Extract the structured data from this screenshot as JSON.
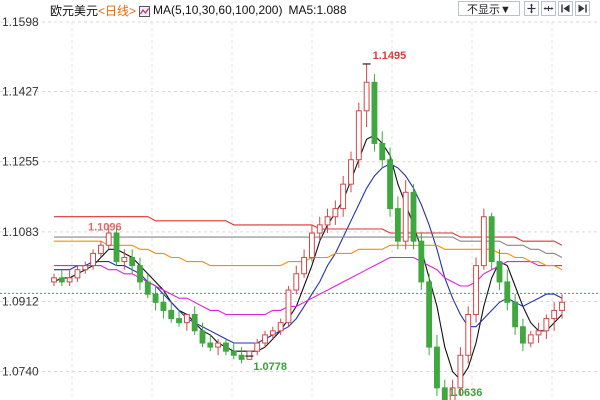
{
  "header": {
    "symbol": "欧元美元",
    "interval": "<日线>",
    "ma_label": "MA(5,10,30,60,100,200)",
    "ma5_readout": "MA5:1.088"
  },
  "toolbar": {
    "display_select": "不显示▼",
    "icons": [
      "zoom-in-icon",
      "zoom-out-icon",
      "step-back-icon",
      "step-forward-icon"
    ]
  },
  "chart_data": {
    "type": "candlestick",
    "ylim": [
      1.068,
      1.1598
    ],
    "y_ticks": [
      "1.1598",
      "1.1427",
      "1.1255",
      "1.1083",
      "1.0912",
      "1.0740"
    ],
    "reference_line": 1.0932,
    "annotations": [
      {
        "text": "1.1096",
        "value": 1.1096,
        "color": "#e06a6a"
      },
      {
        "text": "1.1495",
        "value": 1.1495,
        "color": "#e03a3a"
      },
      {
        "text": "1.0778",
        "value": 1.0778,
        "color": "#3aa03a"
      },
      {
        "text": "1.0636",
        "value": 1.0636,
        "color": "#3aa03a"
      }
    ],
    "candles": [
      [
        1.096,
        1.098,
        1.095,
        1.097
      ],
      [
        1.097,
        1.099,
        1.095,
        1.096
      ],
      [
        1.096,
        1.099,
        1.095,
        1.097
      ],
      [
        1.097,
        1.1,
        1.096,
        1.099
      ],
      [
        1.099,
        1.101,
        1.098,
        1.1
      ],
      [
        1.1,
        1.104,
        1.099,
        1.103
      ],
      [
        1.103,
        1.106,
        1.102,
        1.105
      ],
      [
        1.105,
        1.11,
        1.104,
        1.108
      ],
      [
        1.108,
        1.11,
        1.1,
        1.101
      ],
      [
        1.101,
        1.104,
        1.099,
        1.102
      ],
      [
        1.102,
        1.104,
        1.098,
        1.1
      ],
      [
        1.1,
        1.102,
        1.094,
        1.096
      ],
      [
        1.096,
        1.098,
        1.092,
        1.093
      ],
      [
        1.093,
        1.095,
        1.089,
        1.091
      ],
      [
        1.091,
        1.093,
        1.087,
        1.089
      ],
      [
        1.089,
        1.091,
        1.086,
        1.087
      ],
      [
        1.087,
        1.089,
        1.085,
        1.086
      ],
      [
        1.086,
        1.088,
        1.084,
        1.088
      ],
      [
        1.088,
        1.09,
        1.083,
        1.084
      ],
      [
        1.084,
        1.086,
        1.08,
        1.081
      ],
      [
        1.081,
        1.083,
        1.079,
        1.08
      ],
      [
        1.08,
        1.082,
        1.078,
        1.081
      ],
      [
        1.081,
        1.082,
        1.078,
        1.079
      ],
      [
        1.079,
        1.081,
        1.077,
        1.078
      ],
      [
        1.078,
        1.08,
        1.076,
        1.077
      ],
      [
        1.077,
        1.079,
        1.0778,
        1.079
      ],
      [
        1.079,
        1.082,
        1.078,
        1.081
      ],
      [
        1.081,
        1.084,
        1.08,
        1.083
      ],
      [
        1.083,
        1.085,
        1.082,
        1.084
      ],
      [
        1.084,
        1.087,
        1.083,
        1.086
      ],
      [
        1.086,
        1.095,
        1.085,
        1.094
      ],
      [
        1.094,
        1.1,
        1.093,
        1.098
      ],
      [
        1.098,
        1.104,
        1.097,
        1.102
      ],
      [
        1.102,
        1.11,
        1.101,
        1.108
      ],
      [
        1.108,
        1.112,
        1.106,
        1.11
      ],
      [
        1.11,
        1.114,
        1.108,
        1.112
      ],
      [
        1.112,
        1.116,
        1.11,
        1.114
      ],
      [
        1.114,
        1.122,
        1.112,
        1.12
      ],
      [
        1.12,
        1.128,
        1.118,
        1.126
      ],
      [
        1.126,
        1.14,
        1.124,
        1.138
      ],
      [
        1.138,
        1.1495,
        1.134,
        1.145
      ],
      [
        1.145,
        1.147,
        1.128,
        1.13
      ],
      [
        1.13,
        1.133,
        1.124,
        1.126
      ],
      [
        1.126,
        1.129,
        1.112,
        1.114
      ],
      [
        1.114,
        1.117,
        1.104,
        1.106
      ],
      [
        1.106,
        1.121,
        1.104,
        1.118
      ],
      [
        1.118,
        1.12,
        1.104,
        1.106
      ],
      [
        1.106,
        1.108,
        1.094,
        1.096
      ],
      [
        1.096,
        1.098,
        1.078,
        1.08
      ],
      [
        1.08,
        1.083,
        1.068,
        1.07
      ],
      [
        1.07,
        1.072,
        1.0636,
        1.066
      ],
      [
        1.066,
        1.072,
        1.064,
        1.07
      ],
      [
        1.07,
        1.08,
        1.068,
        1.078
      ],
      [
        1.078,
        1.09,
        1.076,
        1.088
      ],
      [
        1.088,
        1.102,
        1.086,
        1.1
      ],
      [
        1.1,
        1.114,
        1.099,
        1.112
      ],
      [
        1.112,
        1.113,
        1.099,
        1.101
      ],
      [
        1.101,
        1.104,
        1.094,
        1.096
      ],
      [
        1.096,
        1.099,
        1.089,
        1.091
      ],
      [
        1.091,
        1.093,
        1.083,
        1.085
      ],
      [
        1.085,
        1.087,
        1.079,
        1.081
      ],
      [
        1.081,
        1.084,
        1.08,
        1.083
      ],
      [
        1.083,
        1.086,
        1.081,
        1.084
      ],
      [
        1.084,
        1.088,
        1.082,
        1.087
      ],
      [
        1.087,
        1.091,
        1.084,
        1.089
      ],
      [
        1.089,
        1.093,
        1.087,
        1.091
      ]
    ],
    "ma_lines": [
      {
        "name": "MA5",
        "color": "#111111",
        "values": [
          1.096,
          1.097,
          1.097,
          1.098,
          1.099,
          1.1,
          1.102,
          1.104,
          1.104,
          1.103,
          1.102,
          1.1,
          1.098,
          1.096,
          1.094,
          1.091,
          1.089,
          1.088,
          1.086,
          1.084,
          1.083,
          1.081,
          1.08,
          1.079,
          1.079,
          1.079,
          1.079,
          1.08,
          1.082,
          1.084,
          1.087,
          1.09,
          1.095,
          1.1,
          1.106,
          1.11,
          1.113,
          1.116,
          1.121,
          1.126,
          1.131,
          1.132,
          1.13,
          1.127,
          1.12,
          1.115,
          1.11,
          1.104,
          1.097,
          1.09,
          1.08,
          1.074,
          1.072,
          1.075,
          1.081,
          1.09,
          1.097,
          1.101,
          1.1,
          1.095,
          1.09,
          1.086,
          1.084,
          1.084,
          1.086,
          1.088
        ]
      },
      {
        "name": "MA10",
        "color": "#2233aa",
        "values": [
          1.099,
          1.099,
          1.099,
          1.1,
          1.1,
          1.101,
          1.101,
          1.101,
          1.1,
          1.1,
          1.099,
          1.098,
          1.096,
          1.095,
          1.093,
          1.091,
          1.089,
          1.087,
          1.086,
          1.085,
          1.084,
          1.083,
          1.082,
          1.081,
          1.081,
          1.081,
          1.081,
          1.082,
          1.083,
          1.084,
          1.085,
          1.087,
          1.09,
          1.093,
          1.096,
          1.1,
          1.103,
          1.107,
          1.111,
          1.115,
          1.119,
          1.122,
          1.124,
          1.125,
          1.124,
          1.122,
          1.119,
          1.115,
          1.11,
          1.104,
          1.097,
          1.092,
          1.088,
          1.085,
          1.085,
          1.087,
          1.089,
          1.091,
          1.092,
          1.091,
          1.09,
          1.091,
          1.092,
          1.093,
          1.093,
          1.092
        ]
      },
      {
        "name": "MA30",
        "color": "#dd22dd",
        "values": [
          1.1,
          1.1,
          1.1,
          1.1,
          1.1,
          1.1,
          1.1,
          1.099,
          1.099,
          1.098,
          1.098,
          1.097,
          1.096,
          1.095,
          1.094,
          1.093,
          1.092,
          1.092,
          1.091,
          1.09,
          1.089,
          1.089,
          1.088,
          1.088,
          1.088,
          1.088,
          1.088,
          1.088,
          1.089,
          1.089,
          1.09,
          1.09,
          1.091,
          1.092,
          1.093,
          1.094,
          1.095,
          1.096,
          1.097,
          1.098,
          1.099,
          1.1,
          1.101,
          1.102,
          1.102,
          1.102,
          1.102,
          1.101,
          1.1,
          1.099,
          1.097,
          1.096,
          1.095,
          1.095,
          1.096,
          1.098,
          1.099,
          1.1,
          1.101,
          1.101,
          1.101,
          1.101,
          1.1,
          1.1,
          1.1,
          1.1
        ]
      },
      {
        "name": "MA60",
        "color": "#ff8c00",
        "values": [
          1.106,
          1.106,
          1.106,
          1.106,
          1.106,
          1.106,
          1.106,
          1.105,
          1.105,
          1.105,
          1.105,
          1.104,
          1.104,
          1.103,
          1.103,
          1.102,
          1.102,
          1.101,
          1.101,
          1.101,
          1.1,
          1.1,
          1.1,
          1.1,
          1.1,
          1.1,
          1.1,
          1.1,
          1.1,
          1.1,
          1.101,
          1.101,
          1.101,
          1.102,
          1.102,
          1.102,
          1.103,
          1.103,
          1.103,
          1.104,
          1.104,
          1.104,
          1.104,
          1.105,
          1.105,
          1.105,
          1.105,
          1.105,
          1.105,
          1.105,
          1.104,
          1.104,
          1.104,
          1.104,
          1.104,
          1.104,
          1.104,
          1.103,
          1.103,
          1.102,
          1.102,
          1.101,
          1.101,
          1.1,
          1.1,
          1.099
        ]
      },
      {
        "name": "MA100",
        "color": "#888888",
        "values": [
          1.107,
          1.107,
          1.107,
          1.107,
          1.107,
          1.107,
          1.107,
          1.107,
          1.107,
          1.107,
          1.107,
          1.107,
          1.107,
          1.107,
          1.107,
          1.107,
          1.107,
          1.107,
          1.107,
          1.107,
          1.107,
          1.107,
          1.107,
          1.107,
          1.107,
          1.107,
          1.107,
          1.107,
          1.107,
          1.107,
          1.107,
          1.107,
          1.107,
          1.107,
          1.107,
          1.107,
          1.107,
          1.107,
          1.107,
          1.107,
          1.107,
          1.107,
          1.107,
          1.107,
          1.107,
          1.107,
          1.107,
          1.107,
          1.107,
          1.107,
          1.107,
          1.107,
          1.106,
          1.106,
          1.106,
          1.106,
          1.106,
          1.106,
          1.105,
          1.105,
          1.105,
          1.104,
          1.104,
          1.103,
          1.103,
          1.102
        ]
      },
      {
        "name": "MA200",
        "color": "#dd3333",
        "values": [
          1.112,
          1.112,
          1.112,
          1.112,
          1.112,
          1.112,
          1.112,
          1.112,
          1.112,
          1.112,
          1.112,
          1.112,
          1.112,
          1.111,
          1.111,
          1.111,
          1.111,
          1.111,
          1.111,
          1.111,
          1.111,
          1.111,
          1.111,
          1.11,
          1.11,
          1.11,
          1.11,
          1.11,
          1.11,
          1.11,
          1.11,
          1.11,
          1.11,
          1.11,
          1.109,
          1.109,
          1.109,
          1.109,
          1.109,
          1.109,
          1.109,
          1.109,
          1.109,
          1.108,
          1.108,
          1.108,
          1.108,
          1.108,
          1.108,
          1.108,
          1.108,
          1.108,
          1.107,
          1.107,
          1.107,
          1.107,
          1.107,
          1.107,
          1.107,
          1.107,
          1.106,
          1.106,
          1.106,
          1.106,
          1.106,
          1.105
        ]
      }
    ]
  }
}
